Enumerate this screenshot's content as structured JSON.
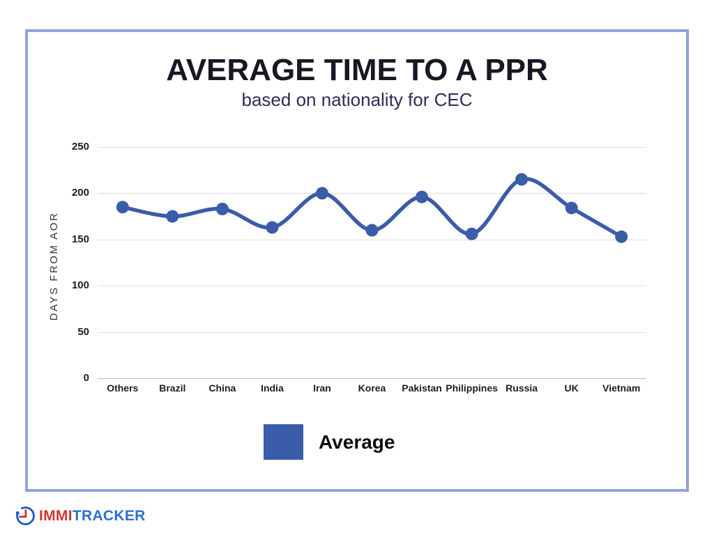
{
  "header": {
    "title": "AVERAGE TIME TO A PPR",
    "subtitle": "based on nationality for CEC"
  },
  "chart_data": {
    "type": "line",
    "title": "AVERAGE TIME TO A PPR",
    "subtitle": "based on nationality for CEC",
    "categories": [
      "Others",
      "Brazil",
      "China",
      "India",
      "Iran",
      "Korea",
      "Pakistan",
      "Philippines",
      "Russia",
      "UK",
      "Vietnam"
    ],
    "series": [
      {
        "name": "Average",
        "color": "#3a5ca9",
        "values": [
          185,
          175,
          183,
          163,
          200,
          160,
          196,
          156,
          215,
          184,
          153
        ]
      }
    ],
    "xlabel": "",
    "ylabel": "DAYS FROM AOR",
    "ylim": [
      0,
      250
    ],
    "yticks": [
      0,
      50,
      100,
      150,
      200,
      250
    ],
    "grid": true,
    "curve": "smooth",
    "point_radius": 9,
    "line_width": 5.5,
    "legend_position": "bottom"
  },
  "legend": {
    "label": "Average",
    "swatch_color": "#3a5ca9"
  },
  "frame": {
    "border_color": "#8fa4d6"
  },
  "colors": {
    "gridline": "#dcdcdc",
    "baseline": "#bdbdbd",
    "title_text": "#191723",
    "subtitle_text": "#322a56",
    "tick_text": "#1e1e1e"
  },
  "logo": {
    "icon": "clock-rewind-icon",
    "text_primary": "IMMI",
    "text_secondary": "TRACKER",
    "primary_color": "#d23434",
    "secondary_color": "#2e6fd0",
    "icon_circle_color": "#1b57c9",
    "icon_hands_color": "#d03030"
  }
}
